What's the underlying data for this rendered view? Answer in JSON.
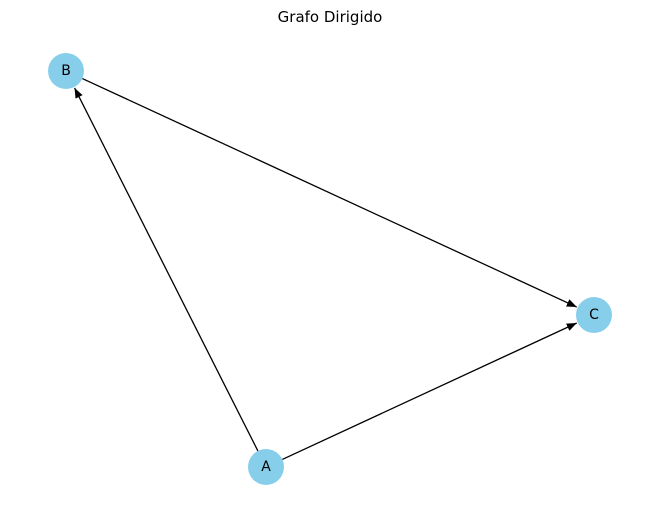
{
  "title": "Grafo Dirigido",
  "graph": {
    "directed": true,
    "node_color": "#87CEEB",
    "edge_color": "#000000",
    "nodes": [
      {
        "id": "A",
        "label": "A"
      },
      {
        "id": "B",
        "label": "B"
      },
      {
        "id": "C",
        "label": "C"
      }
    ],
    "edges": [
      {
        "source": "A",
        "target": "B"
      },
      {
        "source": "A",
        "target": "C"
      },
      {
        "source": "B",
        "target": "C"
      }
    ]
  }
}
